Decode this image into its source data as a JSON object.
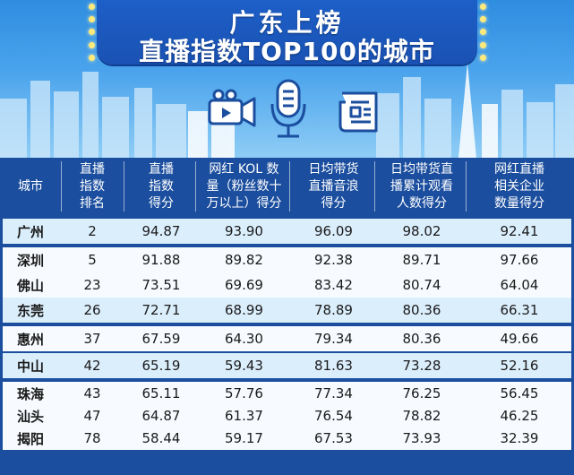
{
  "header": {
    "title_line1": "广东上榜",
    "title_line2": "直播指数TOP100的城市"
  },
  "colors": {
    "header_blue": "#2f8de0",
    "title_box": "#1d5fc8",
    "table_header": "#1b4e9e",
    "row_light": "#dbeefc",
    "row_white": "#f7fbff"
  },
  "icons": [
    "video-camera-icon",
    "microphone-icon",
    "newspaper-icon"
  ],
  "chart_data": {
    "type": "table",
    "columns": [
      "城市",
      "直播\n指数\n排名",
      "直播\n指数\n得分",
      "网红 KOL 数\n量（粉丝数十\n万以上）得分",
      "日均带货\n直播音浪\n得分",
      "日均带货直\n播累计观看\n人数得分",
      "网红直播\n相关企业\n数量得分"
    ],
    "rows": [
      [
        "广州",
        "2",
        "94.87",
        "93.90",
        "96.09",
        "98.02",
        "92.41"
      ],
      [
        "深圳",
        "5",
        "91.88",
        "89.82",
        "92.38",
        "89.71",
        "97.66"
      ],
      [
        "佛山",
        "23",
        "73.51",
        "69.69",
        "83.42",
        "80.74",
        "64.04"
      ],
      [
        "东莞",
        "26",
        "72.71",
        "68.99",
        "78.89",
        "80.36",
        "66.31"
      ],
      [
        "惠州",
        "37",
        "67.59",
        "64.30",
        "79.34",
        "80.36",
        "49.66"
      ],
      [
        "中山",
        "42",
        "65.19",
        "59.43",
        "81.63",
        "73.28",
        "52.16"
      ],
      [
        "珠海",
        "43",
        "65.11",
        "57.76",
        "77.34",
        "76.25",
        "56.45"
      ],
      [
        "汕头",
        "47",
        "64.87",
        "61.37",
        "76.54",
        "78.82",
        "46.25"
      ],
      [
        "揭阳",
        "78",
        "58.44",
        "59.17",
        "67.53",
        "73.93",
        "32.39"
      ]
    ]
  }
}
